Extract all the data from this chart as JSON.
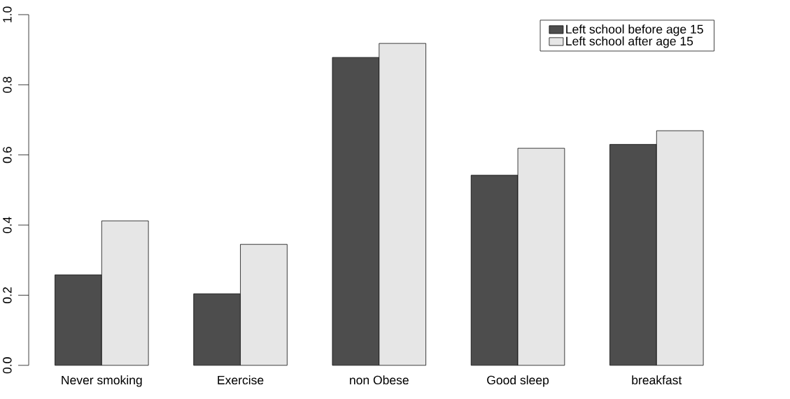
{
  "chart_data": {
    "type": "bar",
    "categories": [
      "Never smoking",
      "Exercise",
      "non Obese",
      "Good sleep",
      "breakfast"
    ],
    "series": [
      {
        "name": "Left school before age 15",
        "color": "#4d4d4d",
        "values": [
          0.258,
          0.204,
          0.878,
          0.542,
          0.63
        ]
      },
      {
        "name": "Left school after age 15",
        "color": "#e6e6e6",
        "values": [
          0.412,
          0.345,
          0.918,
          0.619,
          0.669
        ]
      }
    ],
    "ylim": [
      0,
      1
    ],
    "yticks": [
      {
        "value": 0,
        "label": "0.0"
      },
      {
        "value": 0.2,
        "label": "0.2"
      },
      {
        "value": 0.4,
        "label": "0.4"
      },
      {
        "value": 0.6,
        "label": "0.6"
      },
      {
        "value": 0.8,
        "label": "0.8"
      },
      {
        "value": 1,
        "label": "1.0"
      }
    ],
    "grid": false,
    "legend": "top right"
  }
}
